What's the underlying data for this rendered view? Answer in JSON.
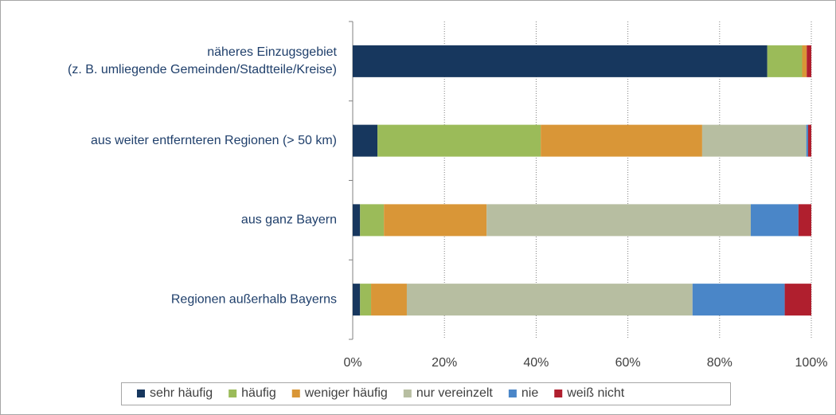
{
  "chart_data": {
    "type": "stacked_bar_horizontal",
    "categories": [
      [
        "näheres Einzugsgebiet",
        "(z. B. umliegende Gemeinden/Stadtteile/Kreise)"
      ],
      [
        "aus weiter entfernteren Regionen (> 50 km)"
      ],
      [
        "aus ganz Bayern"
      ],
      [
        "Regionen außerhalb Bayerns"
      ]
    ],
    "series": [
      {
        "name": "sehr häufig",
        "color": "#17375e",
        "values": [
          90.4,
          5.4,
          1.6,
          1.6
        ]
      },
      {
        "name": "häufig",
        "color": "#9bbb59",
        "values": [
          7.6,
          35.6,
          5.2,
          2.4
        ]
      },
      {
        "name": "weniger häufig",
        "color": "#d99637",
        "values": [
          1.0,
          35.2,
          22.4,
          7.8
        ]
      },
      {
        "name": "nur vereinzelt",
        "color": "#b7bea1",
        "values": [
          0,
          22.7,
          57.6,
          62.3
        ]
      },
      {
        "name": "nie",
        "color": "#4a86c8",
        "values": [
          0,
          0.4,
          10.4,
          20.1
        ]
      },
      {
        "name": "weiß nicht",
        "color": "#b01f2e",
        "values": [
          1.0,
          0.7,
          2.8,
          5.8
        ]
      }
    ],
    "xlim": [
      0,
      100
    ],
    "xticks": [
      {
        "value": 0,
        "label": "0%"
      },
      {
        "value": 20,
        "label": "20%"
      },
      {
        "value": 40,
        "label": "40%"
      },
      {
        "value": 60,
        "label": "60%"
      },
      {
        "value": 80,
        "label": "80%"
      },
      {
        "value": 100,
        "label": "100%"
      }
    ],
    "grid": true,
    "legend": "bottom"
  }
}
